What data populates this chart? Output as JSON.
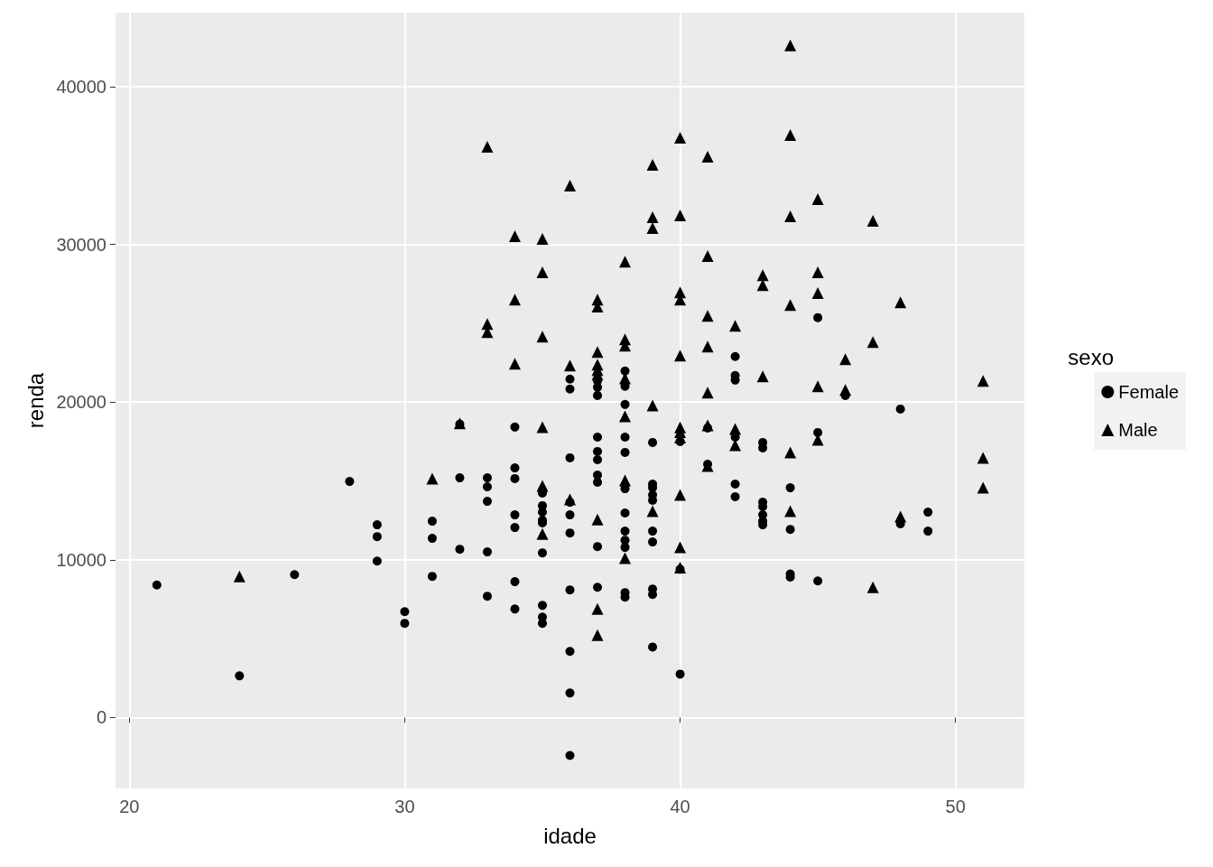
{
  "chart_data": {
    "type": "scatter",
    "xlabel": "idade",
    "ylabel": "renda",
    "legend_title": "sexo",
    "legend": "right",
    "grid": true,
    "xlim": [
      19.5,
      52.5
    ],
    "xticks": [
      20,
      30,
      40,
      50
    ],
    "ylim": [
      -4500,
      44700
    ],
    "yticks": [
      0,
      10000,
      20000,
      30000,
      40000
    ],
    "series": [
      {
        "name": "Female",
        "color": "#000000",
        "marker": "circle",
        "x": [
          21,
          24,
          26,
          28,
          29,
          29,
          29,
          30,
          30,
          31,
          31,
          31,
          32,
          32,
          32,
          33,
          33,
          33,
          33,
          33,
          34,
          34,
          34,
          34,
          34,
          34,
          34,
          35,
          35,
          35,
          35,
          35,
          35,
          35,
          35,
          35,
          36,
          36,
          36,
          36,
          36,
          36,
          36,
          36,
          36,
          36,
          37,
          37,
          37,
          37,
          37,
          37,
          37,
          37,
          37,
          37,
          38,
          38,
          38,
          38,
          38,
          38,
          38,
          38,
          38,
          38,
          38,
          38,
          39,
          39,
          39,
          39,
          39,
          39,
          39,
          39,
          39,
          39,
          40,
          40,
          40,
          41,
          41,
          42,
          42,
          42,
          42,
          42,
          42,
          43,
          43,
          43,
          43,
          43,
          43,
          43,
          44,
          44,
          44,
          44,
          45,
          45,
          45,
          46,
          48,
          48,
          49,
          49
        ],
        "values": [
          8400,
          2640,
          9060,
          14970,
          12220,
          11470,
          9920,
          6710,
          5970,
          12450,
          11360,
          8950,
          18600,
          15200,
          10670,
          15200,
          14630,
          13710,
          10500,
          7690,
          18420,
          15830,
          15150,
          12850,
          12050,
          8610,
          6880,
          14230,
          13430,
          13020,
          12510,
          12340,
          10440,
          7110,
          6370,
          5970,
          21460,
          20830,
          16470,
          13650,
          12850,
          11700,
          8090,
          4190,
          1550,
          -2410,
          21340,
          20940,
          20420,
          17780,
          16870,
          16350,
          15370,
          14920,
          10840,
          8260,
          21970,
          21000,
          19850,
          17780,
          16810,
          14510,
          12970,
          11820,
          11240,
          10790,
          7920,
          7630,
          17440,
          14800,
          14570,
          14110,
          13770,
          11820,
          11130,
          8150,
          7800,
          4470,
          17500,
          9400,
          2750,
          18360,
          16060,
          22890,
          21690,
          21400,
          17780,
          14800,
          14000,
          17440,
          17100,
          13650,
          13370,
          12850,
          12450,
          12220,
          14570,
          11930,
          9100,
          8900,
          25360,
          18070,
          8660,
          20420,
          19560,
          12280,
          13020,
          11820
        ]
      },
      {
        "name": "Male",
        "color": "#000000",
        "marker": "triangle",
        "x": [
          24,
          31,
          32,
          33,
          33,
          33,
          34,
          34,
          34,
          35,
          35,
          35,
          35,
          35,
          35,
          36,
          36,
          36,
          37,
          37,
          37,
          37,
          37,
          37,
          37,
          37,
          37,
          38,
          38,
          38,
          38,
          38,
          38,
          38,
          39,
          39,
          39,
          39,
          39,
          40,
          40,
          40,
          40,
          40,
          40,
          40,
          40,
          40,
          40,
          40,
          41,
          41,
          41,
          41,
          41,
          41,
          41,
          42,
          42,
          42,
          43,
          43,
          43,
          44,
          44,
          44,
          44,
          44,
          44,
          45,
          45,
          45,
          45,
          45,
          46,
          46,
          47,
          47,
          47,
          48,
          48,
          51,
          51,
          51
        ],
        "values": [
          8950,
          15150,
          18650,
          36200,
          24950,
          24440,
          30520,
          26500,
          22430,
          30350,
          28230,
          24150,
          18410,
          14690,
          11640,
          33730,
          22320,
          13830,
          26500,
          26050,
          23180,
          22370,
          22030,
          21740,
          12560,
          6880,
          5220,
          28910,
          23980,
          23580,
          21510,
          19100,
          15030,
          10100,
          35050,
          31720,
          31040,
          19790,
          13080,
          36770,
          31840,
          26960,
          26500,
          22950,
          18400,
          18100,
          17750,
          14110,
          10790,
          9500,
          35570,
          29260,
          25470,
          23520,
          20600,
          18530,
          15950,
          24840,
          18300,
          17270,
          28050,
          27420,
          21630,
          42620,
          36940,
          31780,
          26160,
          16810,
          13080,
          32870,
          28230,
          26910,
          21000,
          17610,
          22720,
          20770,
          31500,
          23810,
          8260,
          26330,
          12740,
          21340,
          16470,
          14570
        ]
      }
    ]
  }
}
